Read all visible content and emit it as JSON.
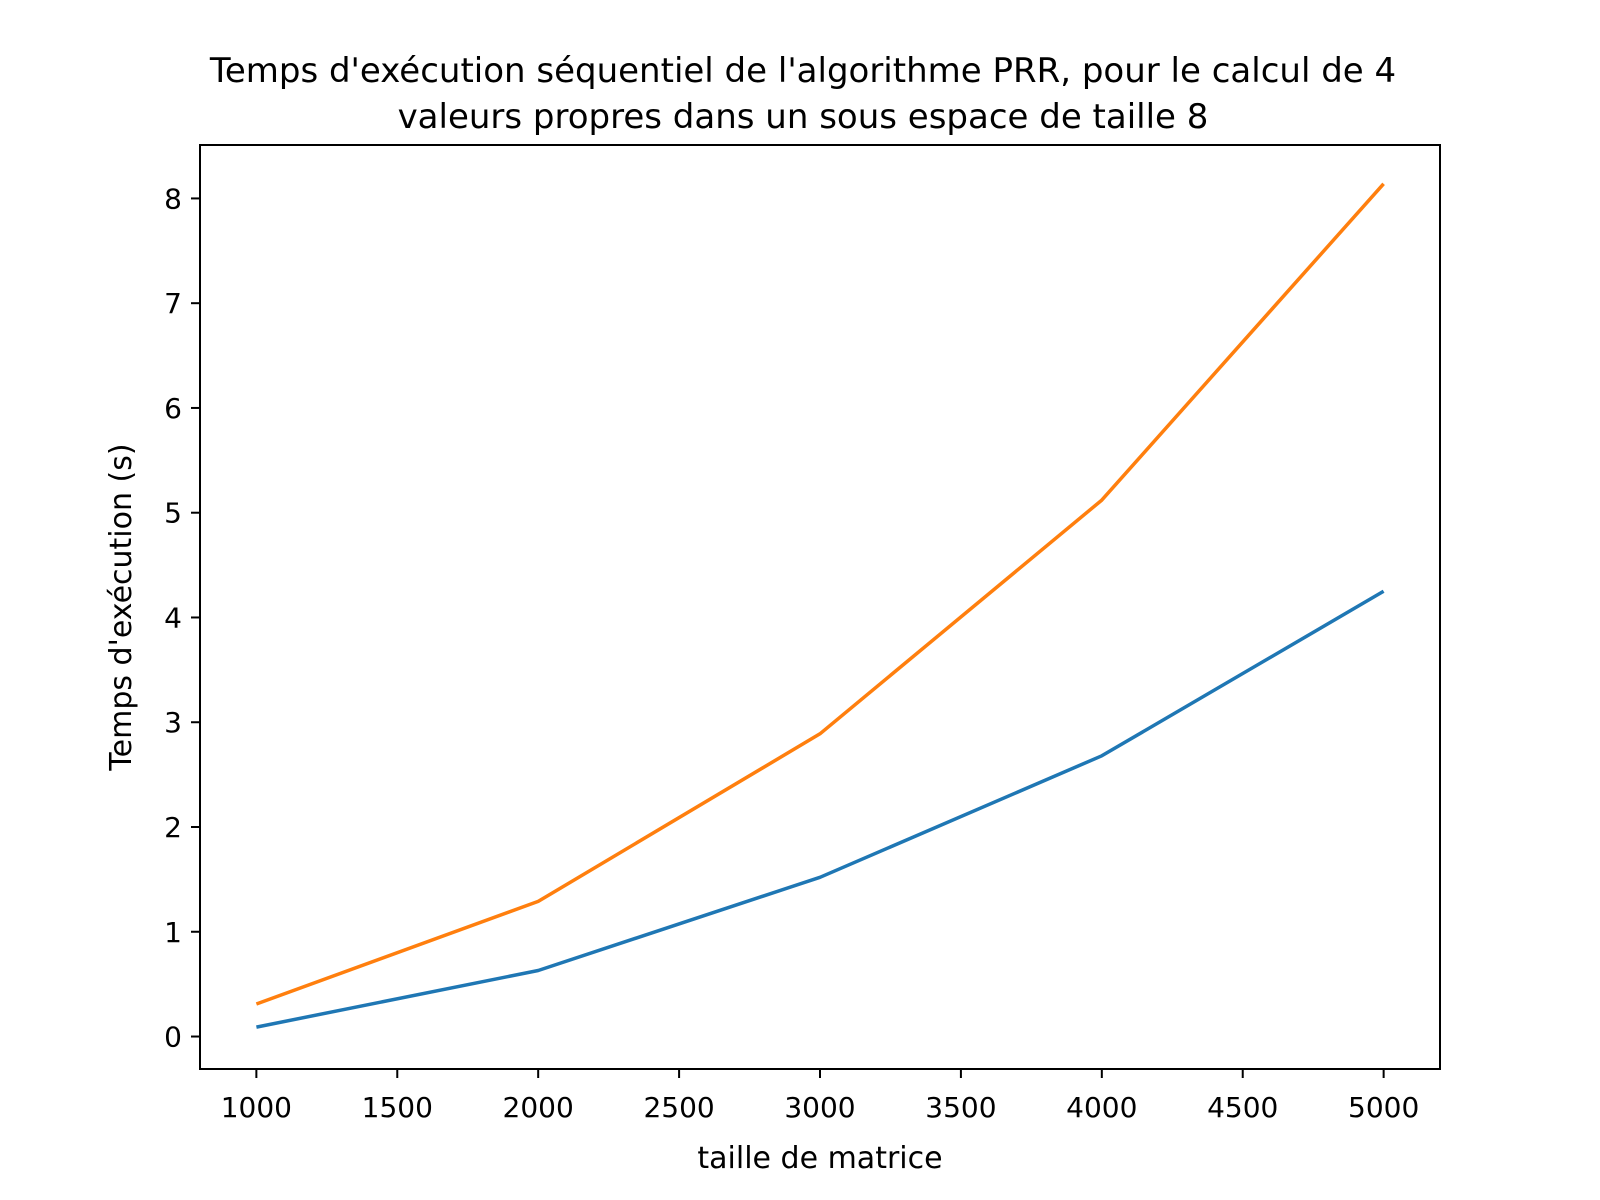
{
  "chart_data": {
    "type": "line",
    "title_lines": [
      "Temps d'exécution séquentiel de l'algorithme PRR, pour le calcul de 4",
      "valeurs propres dans un sous espace de taille 8"
    ],
    "xlabel": "taille de matrice",
    "ylabel": "Temps d'exécution (s)",
    "x": [
      1000,
      2000,
      3000,
      4000,
      5000
    ],
    "xlim": [
      800,
      5200
    ],
    "ylim": [
      -0.31,
      8.51
    ],
    "xticks": [
      1000,
      1500,
      2000,
      2500,
      3000,
      3500,
      4000,
      4500,
      5000
    ],
    "yticks": [
      0,
      1,
      2,
      3,
      4,
      5,
      6,
      7,
      8
    ],
    "grid": false,
    "series": [
      {
        "values": [
          0.09,
          0.63,
          1.52,
          2.68,
          4.25
        ],
        "color": "#1f77b4"
      },
      {
        "values": [
          0.31,
          1.29,
          2.89,
          5.12,
          8.14
        ],
        "color": "#ff7f0e"
      }
    ]
  }
}
